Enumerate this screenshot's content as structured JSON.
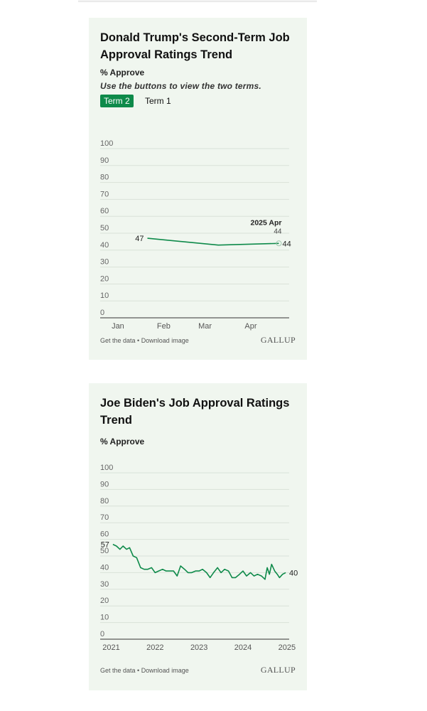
{
  "chart_data": [
    {
      "type": "line",
      "title": "Donald Trump's Second-Term Job Approval Ratings Trend",
      "subtitle": "% Approve",
      "instructions": "Use the buttons to view the two terms.",
      "buttons": [
        {
          "label": "Term 2",
          "active": true
        },
        {
          "label": "Term 1",
          "active": false
        }
      ],
      "y_ticks": [
        "100",
        "90",
        "80",
        "70",
        "60",
        "50",
        "40",
        "30",
        "20",
        "10",
        "0"
      ],
      "ylim": [
        0,
        100
      ],
      "x_tick_labels": [
        {
          "month": "Jan",
          "year": "2025",
          "date": "2025-01-01"
        },
        {
          "month": "Feb",
          "year": "",
          "date": "2025-02-01"
        },
        {
          "month": "Mar",
          "year": "",
          "date": "2025-03-01"
        },
        {
          "month": "Apr",
          "year": "",
          "date": "2025-04-01"
        }
      ],
      "xlim": [
        "2024-12-20",
        "2025-04-27"
      ],
      "points": [
        {
          "date": "2025-01-21",
          "value": 47
        },
        {
          "date": "2025-03-10",
          "value": 43
        },
        {
          "date": "2025-04-20",
          "value": 44
        }
      ],
      "start_label": "47",
      "end_label": "44",
      "tooltip": {
        "title": "2025 Apr",
        "value": "44"
      },
      "line_color": "#0e8a4a",
      "footer": {
        "get_data": "Get the data",
        "separator": " • ",
        "download": "Download image"
      },
      "brand": "GALLUP"
    },
    {
      "type": "line",
      "title": "Joe Biden's Job Approval Ratings Trend",
      "subtitle": "% Approve",
      "y_ticks": [
        "100",
        "90",
        "80",
        "70",
        "60",
        "50",
        "40",
        "30",
        "20",
        "10",
        "0"
      ],
      "ylim": [
        0,
        100
      ],
      "x_tick_labels": [
        "2021",
        "2022",
        "2023",
        "2024",
        "2025"
      ],
      "xlim": [
        2020.75,
        2025.05
      ],
      "points": [
        [
          2021.04,
          57
        ],
        [
          2021.12,
          56
        ],
        [
          2021.2,
          54
        ],
        [
          2021.27,
          56
        ],
        [
          2021.35,
          54
        ],
        [
          2021.42,
          55
        ],
        [
          2021.5,
          50
        ],
        [
          2021.58,
          49
        ],
        [
          2021.67,
          43
        ],
        [
          2021.75,
          42
        ],
        [
          2021.83,
          42
        ],
        [
          2021.92,
          43
        ],
        [
          2022.0,
          40
        ],
        [
          2022.08,
          41
        ],
        [
          2022.17,
          42
        ],
        [
          2022.25,
          41
        ],
        [
          2022.33,
          41
        ],
        [
          2022.42,
          41
        ],
        [
          2022.5,
          38
        ],
        [
          2022.58,
          44
        ],
        [
          2022.67,
          42
        ],
        [
          2022.75,
          40
        ],
        [
          2022.83,
          40
        ],
        [
          2022.92,
          41
        ],
        [
          2023.0,
          41
        ],
        [
          2023.08,
          42
        ],
        [
          2023.17,
          40
        ],
        [
          2023.25,
          37
        ],
        [
          2023.33,
          40
        ],
        [
          2023.42,
          43
        ],
        [
          2023.5,
          40
        ],
        [
          2023.58,
          42
        ],
        [
          2023.67,
          41
        ],
        [
          2023.75,
          37
        ],
        [
          2023.83,
          37
        ],
        [
          2023.92,
          39
        ],
        [
          2024.0,
          41
        ],
        [
          2024.08,
          38
        ],
        [
          2024.17,
          40
        ],
        [
          2024.25,
          38
        ],
        [
          2024.33,
          39
        ],
        [
          2024.42,
          38
        ],
        [
          2024.5,
          36
        ],
        [
          2024.55,
          43
        ],
        [
          2024.6,
          39
        ],
        [
          2024.65,
          45
        ],
        [
          2024.72,
          41
        ],
        [
          2024.78,
          39
        ],
        [
          2024.83,
          37
        ],
        [
          2024.9,
          39
        ],
        [
          2024.97,
          40
        ]
      ],
      "start_label": "57",
      "end_label": "40",
      "line_color": "#0e8a4a",
      "footer": {
        "get_data": "Get the data",
        "separator": " • ",
        "download": "Download image"
      },
      "brand": "GALLUP"
    }
  ]
}
